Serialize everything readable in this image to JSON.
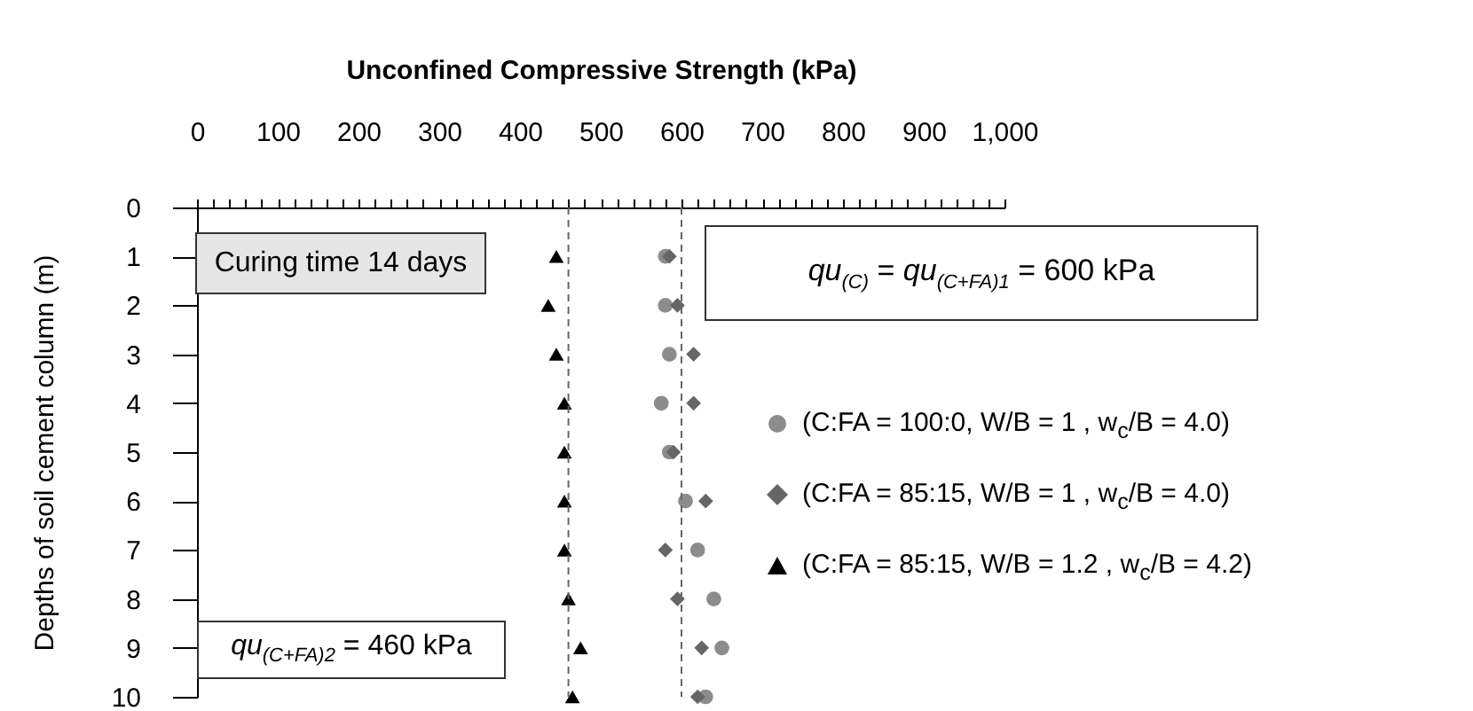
{
  "chart_data": {
    "type": "scatter",
    "xlabel": "Unconfined Compressive Strength (kPa)",
    "ylabel": "Depths of soil cement column (m)",
    "xlim": [
      0,
      1000
    ],
    "xticks": [
      0,
      {
        "value": 20,
        "label": null
      },
      {
        "value": 40,
        "label": null
      },
      {
        "value": 60,
        "label": null
      },
      {
        "value": 80,
        "label": null
      },
      100,
      {
        "value": 120,
        "label": null
      },
      {
        "value": 140,
        "label": null
      },
      {
        "value": 160,
        "label": null
      },
      {
        "value": 180,
        "label": null
      },
      200,
      {
        "value": 220,
        "label": null
      },
      {
        "value": 240,
        "label": null
      },
      {
        "value": 260,
        "label": null
      },
      {
        "value": 280,
        "label": null
      },
      300,
      {
        "value": 320,
        "label": null
      },
      {
        "value": 340,
        "label": null
      },
      {
        "value": 360,
        "label": null
      },
      {
        "value": 380,
        "label": null
      },
      400,
      {
        "value": 420,
        "label": null
      },
      {
        "value": 440,
        "label": null
      },
      {
        "value": 460,
        "label": null
      },
      {
        "value": 480,
        "label": null
      },
      500,
      {
        "value": 520,
        "label": null
      },
      {
        "value": 540,
        "label": null
      },
      {
        "value": 560,
        "label": null
      },
      {
        "value": 580,
        "label": null
      },
      600,
      {
        "value": 620,
        "label": null
      },
      {
        "value": 640,
        "label": null
      },
      {
        "value": 660,
        "label": null
      },
      {
        "value": 680,
        "label": null
      },
      700,
      {
        "value": 720,
        "label": null
      },
      {
        "value": 740,
        "label": null
      },
      {
        "value": 760,
        "label": null
      },
      {
        "value": 780,
        "label": null
      },
      800,
      {
        "value": 820,
        "label": null
      },
      {
        "value": 840,
        "label": null
      },
      {
        "value": 860,
        "label": null
      },
      {
        "value": 880,
        "label": null
      },
      900,
      {
        "value": 920,
        "label": null
      },
      {
        "value": 940,
        "label": null
      },
      {
        "value": 960,
        "label": null
      },
      {
        "value": 980,
        "label": null
      },
      {
        "value": 1000,
        "label": "1,000"
      }
    ],
    "ylim": [
      10,
      0
    ],
    "yticks": [
      0,
      1,
      2,
      3,
      4,
      5,
      6,
      7,
      8,
      9,
      10
    ],
    "grid": false,
    "legend": "right",
    "series": [
      {
        "name": "(C:FA = 100:0, W/B = 1 , w$_{c}$/B = 4.0)",
        "color": "#8c8c8c",
        "marker": "circle",
        "x": [
          580,
          580,
          585,
          575,
          585,
          605,
          620,
          640,
          650,
          630
        ],
        "values": [
          1,
          2,
          3,
          4,
          5,
          6,
          7,
          8,
          9,
          10
        ]
      },
      {
        "name": "(C:FA = 85:15, W/B = 1 , w$_{c}$/B = 4.0)",
        "color": "#666666",
        "marker": "diamond",
        "x": [
          585,
          595,
          615,
          615,
          590,
          630,
          580,
          595,
          625,
          620
        ],
        "values": [
          1,
          2,
          3,
          4,
          5,
          6,
          7,
          8,
          9,
          10
        ]
      },
      {
        "name": "(C:FA = 85:15, W/B = 1.2 , w$_{c}$/B = 4.2)",
        "color": "#000000",
        "marker": "triangle",
        "x": [
          445,
          435,
          445,
          455,
          455,
          455,
          455,
          460,
          475,
          465
        ],
        "values": [
          1,
          2,
          3,
          4,
          5,
          6,
          7,
          8,
          9,
          10
        ]
      }
    ],
    "ref_lines": [
      {
        "axis": "x",
        "value": 600,
        "color": "#666666",
        "line_style": "dashed"
      },
      {
        "axis": "x",
        "value": 460,
        "color": "#666666",
        "line_style": "dashed"
      }
    ],
    "annotations": [
      "Curing time 14 days",
      "qu$_{(C)}$ = qu$_{(C+FA)1}$ = 600 kPa",
      "qu$_{(C+FA)2}$ = 460 kPa"
    ]
  }
}
